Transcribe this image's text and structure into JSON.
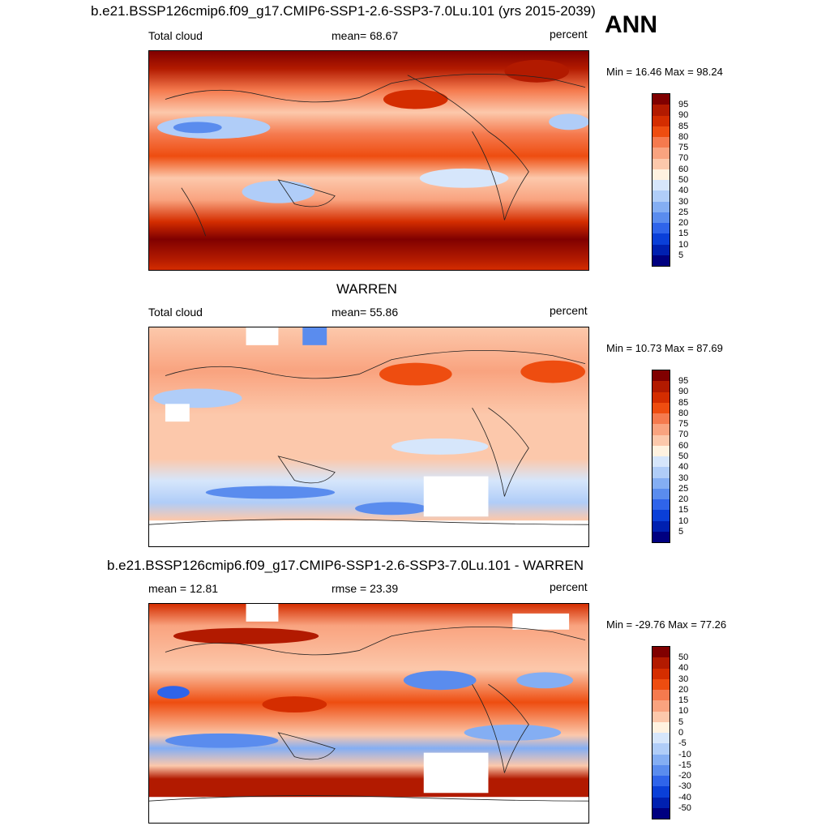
{
  "season": "ANN",
  "panels": [
    {
      "title": "b.e21.BSSP126cmip6.f09_g17.CMIP6-SSP1-2.6-SSP3-7.0Lu.101 (yrs 2015-2039)",
      "left_label": "Total cloud",
      "center_label": "mean=  68.67",
      "units": "percent",
      "minmax": "Min =  16.46 Max =  98.24",
      "levels": [
        "95",
        "90",
        "85",
        "80",
        "75",
        "70",
        "60",
        "50",
        "40",
        "30",
        "25",
        "20",
        "15",
        "10",
        "5"
      ]
    },
    {
      "title": "WARREN",
      "left_label": "Total cloud",
      "center_label": "mean=  55.86",
      "units": "percent",
      "minmax": "Min =  10.73 Max =  87.69",
      "levels": [
        "95",
        "90",
        "85",
        "80",
        "75",
        "70",
        "60",
        "50",
        "40",
        "30",
        "25",
        "20",
        "15",
        "10",
        "5"
      ]
    },
    {
      "title": "b.e21.BSSP126cmip6.f09_g17.CMIP6-SSP1-2.6-SSP3-7.0Lu.101 - WARREN",
      "left_label": "mean =  12.81",
      "center_label": "rmse =  23.39",
      "units": "percent",
      "minmax": "Min = -29.76 Max =  77.26",
      "levels": [
        "50",
        "40",
        "30",
        "20",
        "15",
        "10",
        "5",
        "0",
        "-5",
        "-10",
        "-15",
        "-20",
        "-30",
        "-40",
        "-50"
      ]
    }
  ],
  "colors": {
    "scale": [
      "#800000",
      "#b21a00",
      "#d42d00",
      "#ee4d10",
      "#f57a4e",
      "#f9a37f",
      "#fcc8ab",
      "#fff2e0",
      "#d6e6fb",
      "#b0cdf8",
      "#84aef3",
      "#5a8cee",
      "#2f64ea",
      "#0a3fd8",
      "#0020b0",
      "#000080"
    ]
  }
}
